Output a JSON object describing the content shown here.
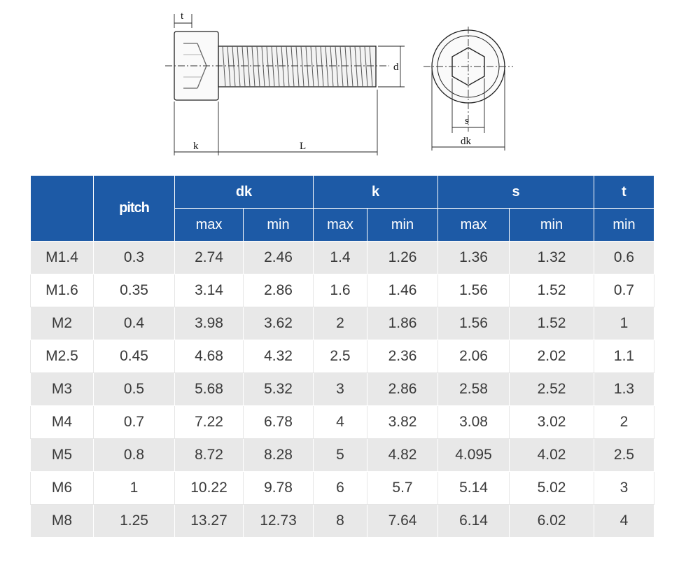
{
  "drawing": {
    "labels": {
      "t": "t",
      "k": "k",
      "L": "L",
      "d": "d",
      "s": "s",
      "dk": "dk"
    }
  },
  "table": {
    "header_color": "#1d5aa6",
    "stripe_color": "#e8e8e8",
    "group_headers": {
      "pitch": "pitch",
      "dk": "dk",
      "k": "k",
      "s": "s",
      "t": "t"
    },
    "sub_headers": [
      "max",
      "min",
      "max",
      "min",
      "max",
      "min",
      "min"
    ],
    "rows": [
      {
        "size": "M1.4",
        "pitch": "0.3",
        "dk_max": "2.74",
        "dk_min": "2.46",
        "k_max": "1.4",
        "k_min": "1.26",
        "s_max": "1.36",
        "s_min": "1.32",
        "t_min": "0.6"
      },
      {
        "size": "M1.6",
        "pitch": "0.35",
        "dk_max": "3.14",
        "dk_min": "2.86",
        "k_max": "1.6",
        "k_min": "1.46",
        "s_max": "1.56",
        "s_min": "1.52",
        "t_min": "0.7"
      },
      {
        "size": "M2",
        "pitch": "0.4",
        "dk_max": "3.98",
        "dk_min": "3.62",
        "k_max": "2",
        "k_min": "1.86",
        "s_max": "1.56",
        "s_min": "1.52",
        "t_min": "1"
      },
      {
        "size": "M2.5",
        "pitch": "0.45",
        "dk_max": "4.68",
        "dk_min": "4.32",
        "k_max": "2.5",
        "k_min": "2.36",
        "s_max": "2.06",
        "s_min": "2.02",
        "t_min": "1.1"
      },
      {
        "size": "M3",
        "pitch": "0.5",
        "dk_max": "5.68",
        "dk_min": "5.32",
        "k_max": "3",
        "k_min": "2.86",
        "s_max": "2.58",
        "s_min": "2.52",
        "t_min": "1.3"
      },
      {
        "size": "M4",
        "pitch": "0.7",
        "dk_max": "7.22",
        "dk_min": "6.78",
        "k_max": "4",
        "k_min": "3.82",
        "s_max": "3.08",
        "s_min": "3.02",
        "t_min": "2"
      },
      {
        "size": "M5",
        "pitch": "0.8",
        "dk_max": "8.72",
        "dk_min": "8.28",
        "k_max": "5",
        "k_min": "4.82",
        "s_max": "4.095",
        "s_min": "4.02",
        "t_min": "2.5"
      },
      {
        "size": "M6",
        "pitch": "1",
        "dk_max": "10.22",
        "dk_min": "9.78",
        "k_max": "6",
        "k_min": "5.7",
        "s_max": "5.14",
        "s_min": "5.02",
        "t_min": "3"
      },
      {
        "size": "M8",
        "pitch": "1.25",
        "dk_max": "13.27",
        "dk_min": "12.73",
        "k_max": "8",
        "k_min": "7.64",
        "s_max": "6.14",
        "s_min": "6.02",
        "t_min": "4"
      }
    ]
  }
}
